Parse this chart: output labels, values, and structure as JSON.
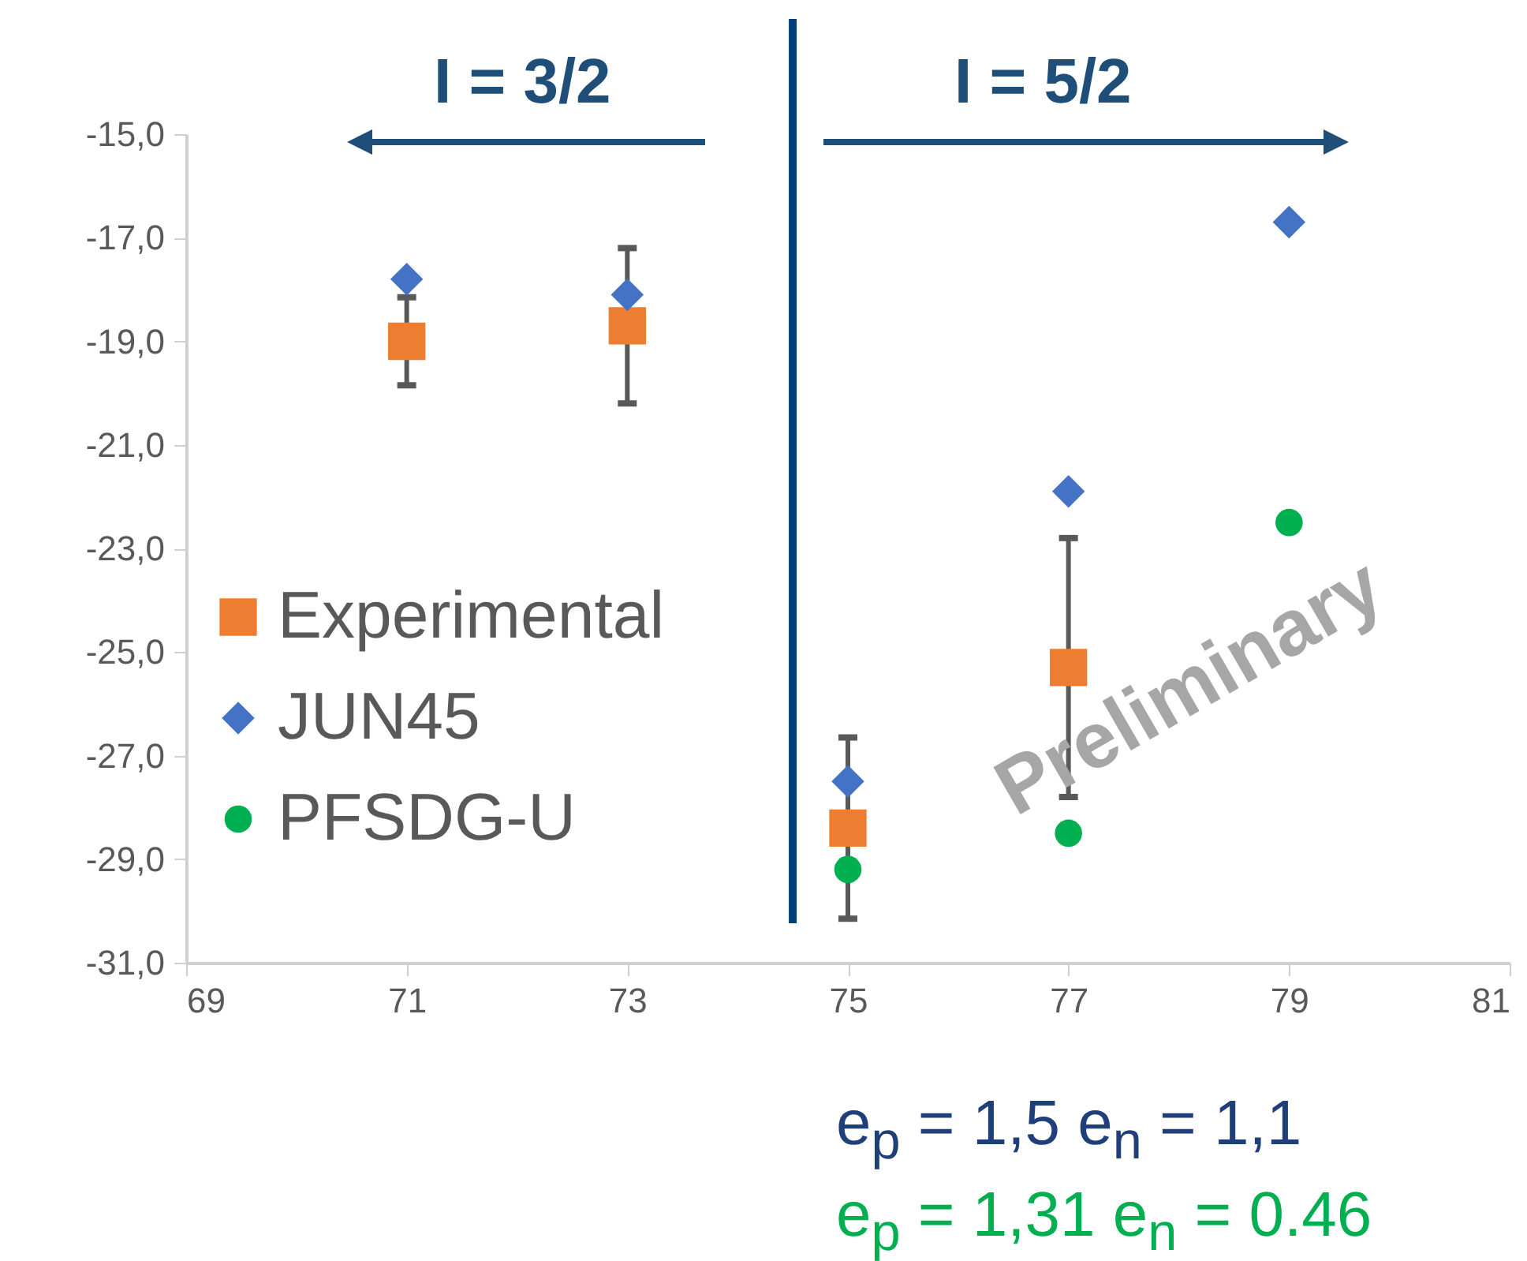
{
  "chart_data": {
    "type": "scatter",
    "x": [
      71,
      73,
      75,
      77,
      79
    ],
    "series": [
      {
        "name": "Experimental",
        "color": "#ed7d31",
        "marker": "square",
        "values": [
          -19.0,
          -18.7,
          -28.4,
          -25.3,
          null
        ],
        "errors": [
          0.85,
          1.5,
          1.75,
          2.5,
          null
        ]
      },
      {
        "name": "JUN45",
        "color": "#4472c4",
        "marker": "diamond",
        "values": [
          -17.8,
          -18.1,
          -27.5,
          -21.9,
          -16.7
        ]
      },
      {
        "name": "PFSDG-U",
        "color": "#00b050",
        "marker": "circle",
        "values": [
          null,
          null,
          -29.2,
          -28.5,
          -22.5
        ]
      }
    ],
    "xlim": [
      69,
      81
    ],
    "xticks": [
      69,
      71,
      73,
      75,
      77,
      79,
      81
    ],
    "ylim": [
      -31,
      -15
    ],
    "yticks": [
      {
        "value": -31,
        "label": "-31,0"
      },
      {
        "value": -29,
        "label": "-29,0"
      },
      {
        "value": -27,
        "label": "-27,0"
      },
      {
        "value": -25,
        "label": "-25,0"
      },
      {
        "value": -23,
        "label": "-23,0"
      },
      {
        "value": -21,
        "label": "-21,0"
      },
      {
        "value": -19,
        "label": "-19,0"
      },
      {
        "value": -17,
        "label": "-17,0"
      },
      {
        "value": -15,
        "label": "-15,0"
      }
    ],
    "grid": false,
    "legend": "left",
    "ref_lines": [
      {
        "axis": "x",
        "value": 74.5,
        "color": "#003f7f"
      }
    ],
    "annotations": [
      "I = 3/2",
      "I = 5/2",
      "Preliminary",
      "e$_{p}$ = 1,5  e$_{n}$ = 1,1",
      "e$_{p}$ = 1,31  e$_{n}$ = 0.46"
    ]
  }
}
